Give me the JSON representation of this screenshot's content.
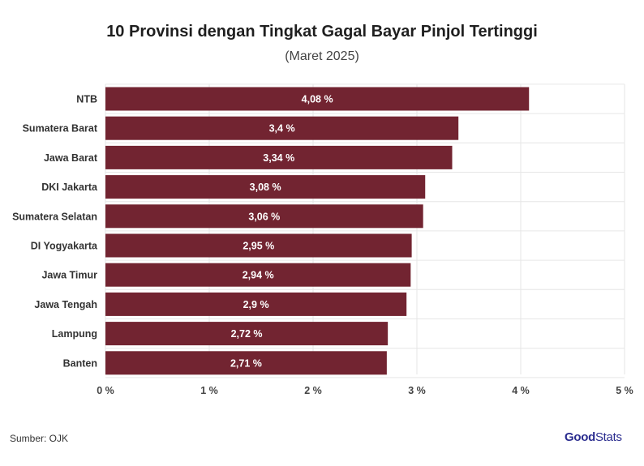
{
  "header": {
    "title": "10 Provinsi dengan Tingkat Gagal Bayar Pinjol Tertinggi",
    "subtitle": "(Maret 2025)"
  },
  "footer": {
    "source": "Sumber: OJK",
    "logo_good": "Good",
    "logo_stats": "Stats"
  },
  "colors": {
    "bar": "#722431",
    "grid": "#e6e6e6",
    "bar_label": "#ffffff"
  },
  "chart_data": {
    "type": "bar",
    "orientation": "horizontal",
    "categories": [
      "NTB",
      "Sumatera Barat",
      "Jawa Barat",
      "DKI Jakarta",
      "Sumatera Selatan",
      "DI Yogyakarta",
      "Jawa Timur",
      "Jawa Tengah",
      "Lampung",
      "Banten"
    ],
    "values": [
      4.08,
      3.4,
      3.34,
      3.08,
      3.06,
      2.95,
      2.94,
      2.9,
      2.72,
      2.71
    ],
    "value_labels": [
      "4,08 %",
      "3,4 %",
      "3,34 %",
      "3,08 %",
      "3,06 %",
      "2,95 %",
      "2,94 %",
      "2,9 %",
      "2,72 %",
      "2,71 %"
    ],
    "xlim": [
      0,
      5
    ],
    "xticks": [
      0,
      1,
      2,
      3,
      4,
      5
    ],
    "xtick_labels": [
      "0 %",
      "1 %",
      "2 %",
      "3 %",
      "4 %",
      "5 %"
    ],
    "grid": true,
    "title": "10 Provinsi dengan Tingkat Gagal Bayar Pinjol Tertinggi",
    "subtitle": "(Maret 2025)",
    "xlabel": "",
    "ylabel": ""
  }
}
